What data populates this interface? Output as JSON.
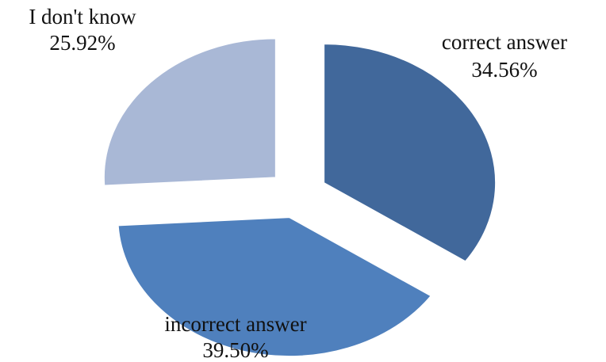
{
  "chart_data": {
    "type": "pie",
    "exploded": true,
    "title": "",
    "slices": [
      {
        "label": "correct answer",
        "value": 34.56,
        "value_label": "34.56%",
        "color": "#41689B"
      },
      {
        "label": "incorrect answer",
        "value": 39.5,
        "value_label": "39.50%",
        "color": "#4F80BD"
      },
      {
        "label": "I don't know",
        "value": 25.92,
        "value_label": "25.92%",
        "color": "#A9B8D6"
      }
    ]
  }
}
